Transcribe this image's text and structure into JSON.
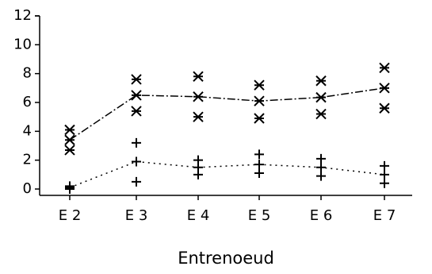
{
  "chart_data": {
    "type": "line",
    "x_label": "Entrenoeud",
    "categories": [
      "E 2",
      "E 3",
      "E 4",
      "E 5",
      "E 6",
      "E 7"
    ],
    "ylim": [
      0,
      12
    ],
    "yticks": [
      0,
      2,
      4,
      6,
      8,
      10,
      12
    ],
    "series": [
      {
        "color": "#000000",
        "line": "dashdot",
        "marker": "asterisk",
        "values": [
          3.4,
          6.5,
          6.4,
          6.1,
          6.35,
          7.0
        ],
        "high": [
          4.1,
          7.6,
          7.8,
          7.2,
          7.5,
          8.4
        ],
        "low": [
          2.7,
          5.4,
          5.0,
          4.9,
          5.2,
          5.6
        ]
      },
      {
        "color": "#000000",
        "line": "dotted",
        "marker": "plus",
        "values": [
          0.1,
          1.9,
          1.5,
          1.7,
          1.5,
          1.0
        ],
        "high": [
          0.2,
          3.2,
          2.0,
          2.4,
          2.1,
          1.6
        ],
        "low": [
          0.0,
          0.5,
          1.0,
          1.1,
          0.9,
          0.4
        ]
      }
    ]
  }
}
